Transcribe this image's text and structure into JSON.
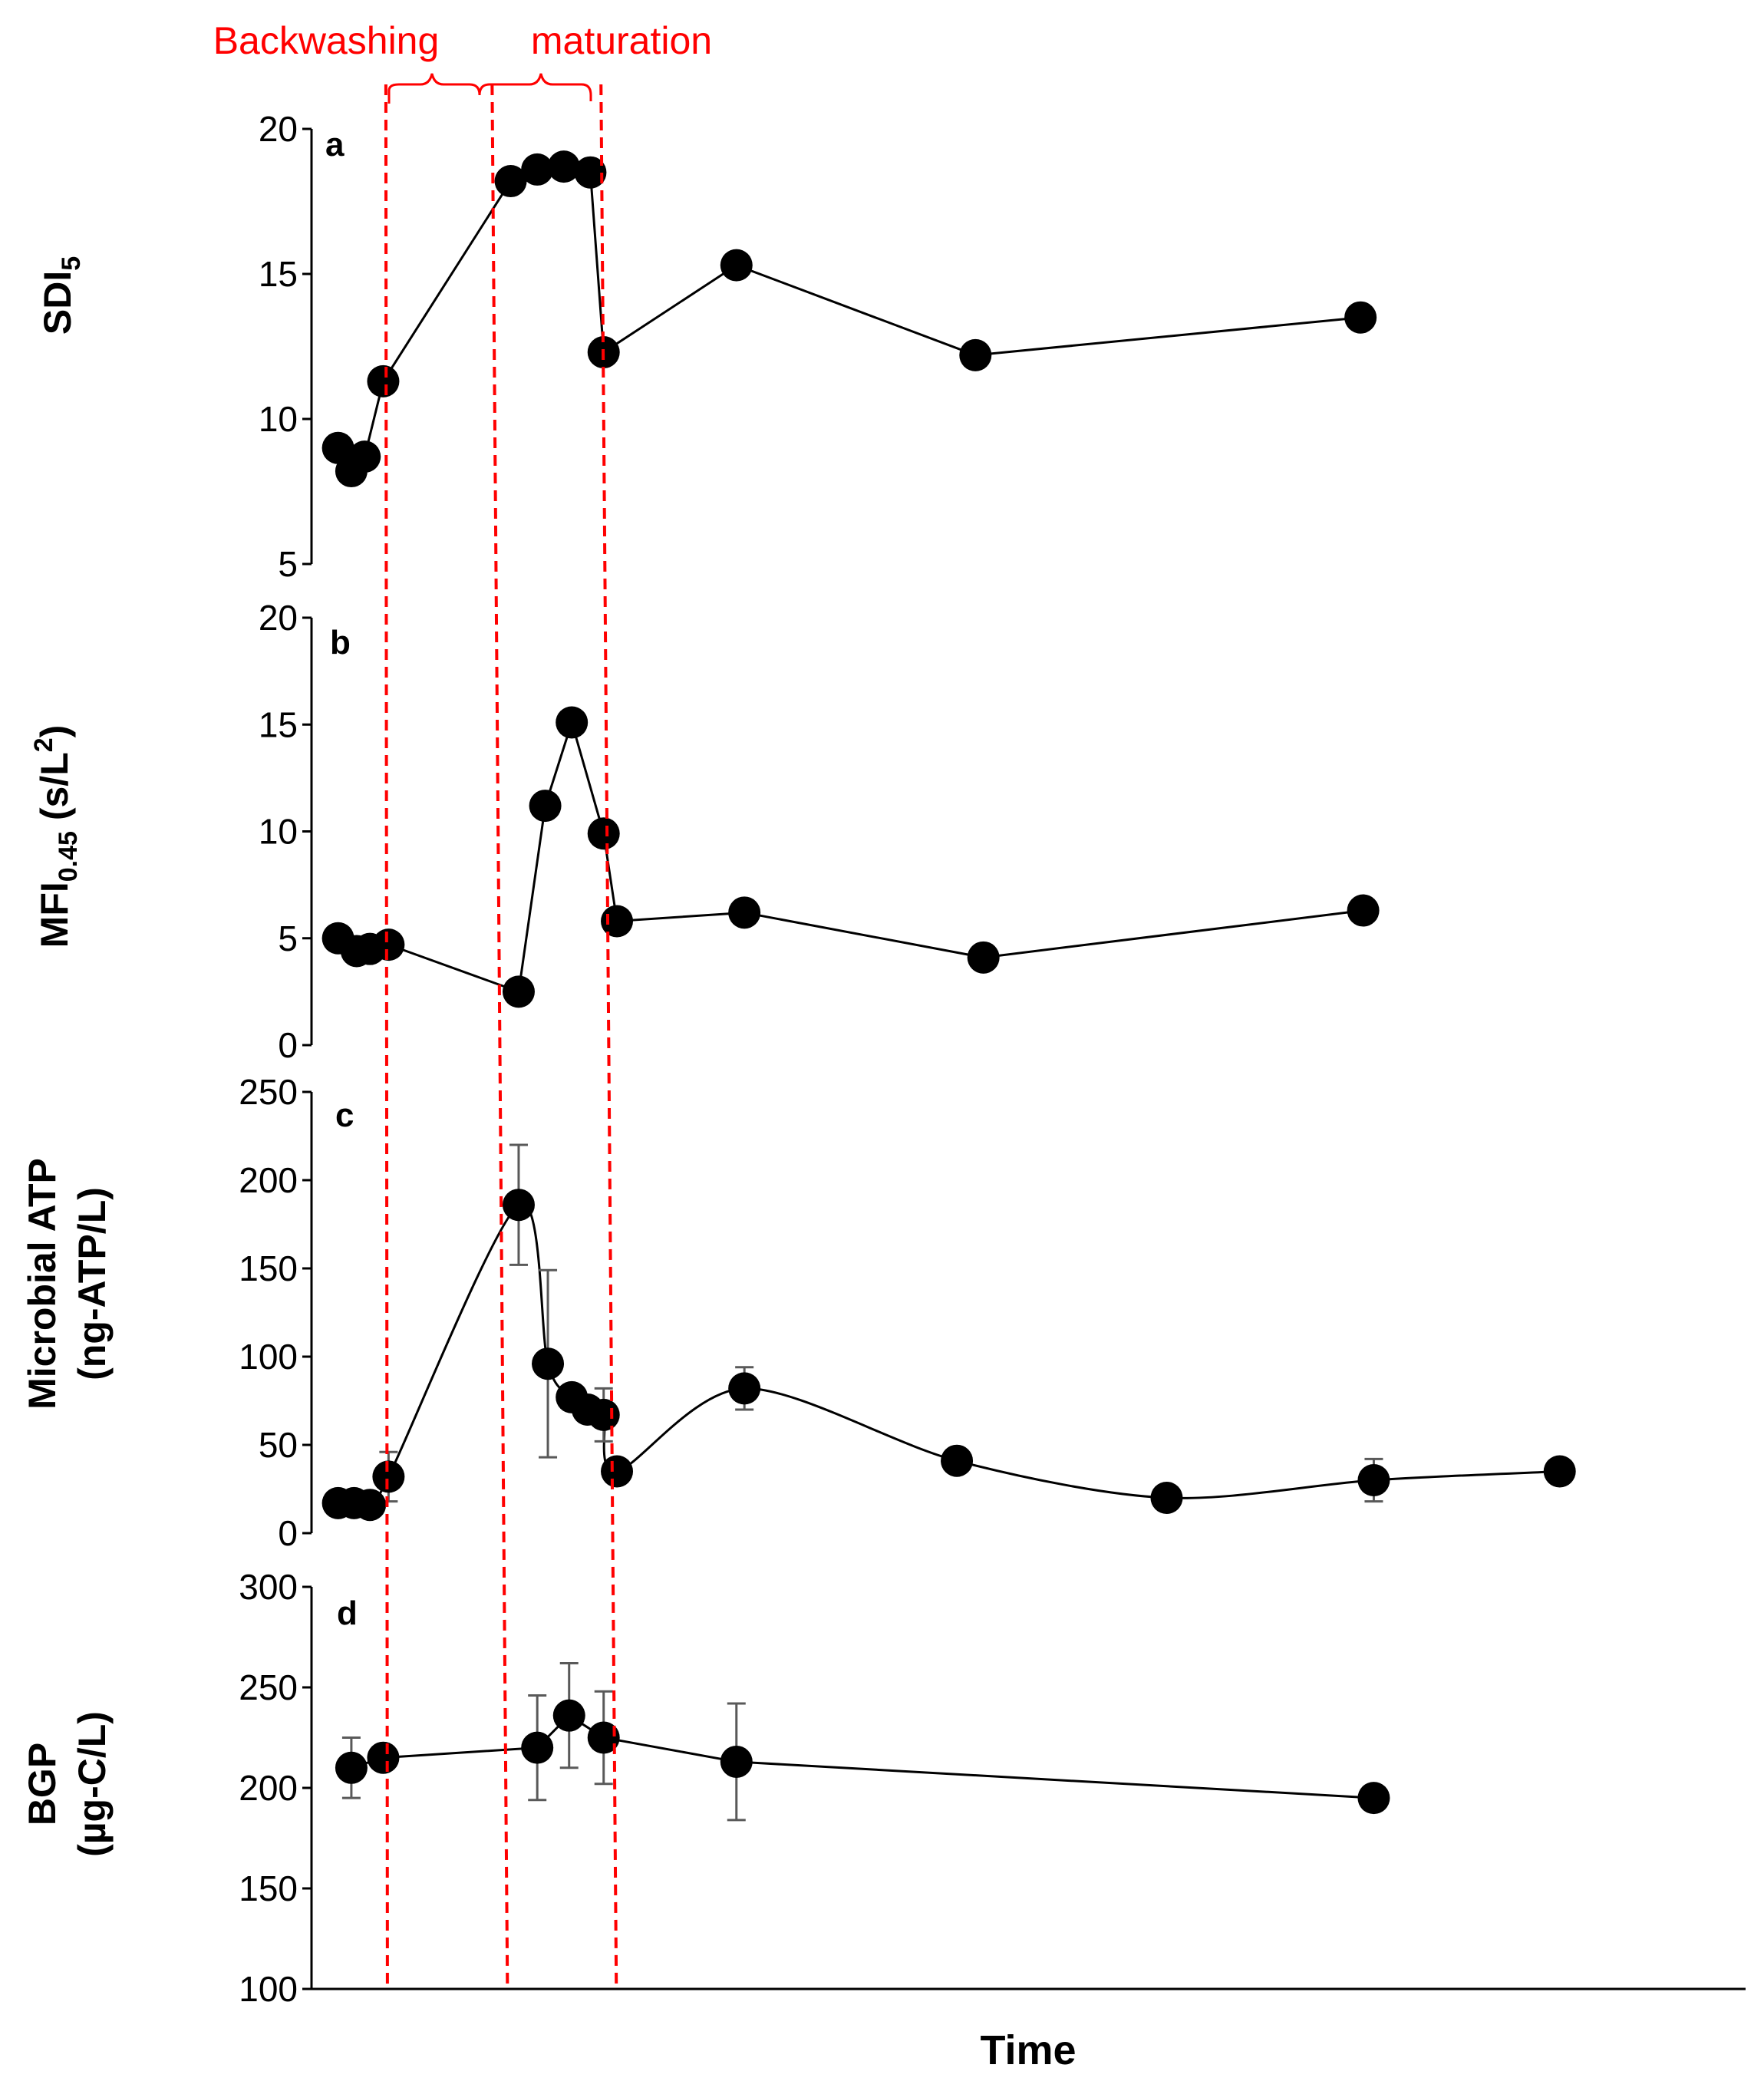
{
  "chart_data": [
    {
      "type": "line",
      "panel": "a",
      "ylabel": "SDI",
      "ylabel_sub": "5",
      "ylim": [
        5,
        20
      ],
      "yticks": [
        5,
        10,
        15,
        20
      ],
      "x": [
        1.0,
        1.5,
        2.0,
        2.7,
        7.5,
        8.5,
        9.5,
        10.5,
        11.0,
        16.0,
        25.0,
        39.5
      ],
      "y": [
        9.0,
        8.2,
        8.7,
        11.3,
        18.2,
        18.6,
        18.7,
        18.5,
        12.3,
        15.3,
        12.2,
        13.5
      ],
      "smooth": false
    },
    {
      "type": "line",
      "panel": "b",
      "ylabel": "MFI",
      "ylabel_sub": "0.45",
      "ylabel_rest": " (s/L",
      "ylabel_sup": "2",
      "ylabel_end": ")",
      "ylim": [
        0,
        20
      ],
      "yticks": [
        0,
        5,
        10,
        15,
        20
      ],
      "x": [
        1.0,
        1.7,
        2.2,
        2.9,
        7.8,
        8.8,
        9.8,
        11.0,
        11.5,
        16.3,
        25.3,
        39.6
      ],
      "y": [
        5.0,
        4.4,
        4.5,
        4.7,
        2.5,
        11.2,
        15.1,
        9.9,
        5.8,
        6.2,
        4.1,
        6.3
      ],
      "smooth": false
    },
    {
      "type": "line",
      "panel": "c",
      "ylabel_line1": "Microbial ATP",
      "ylabel_line2": "(ng-ATP/L)",
      "ylim": [
        0,
        250
      ],
      "yticks": [
        0,
        50,
        100,
        150,
        200,
        250
      ],
      "x": [
        1.0,
        1.6,
        2.2,
        2.9,
        7.8,
        8.9,
        9.8,
        10.4,
        11.0,
        11.5,
        16.3,
        24.3,
        32.2,
        40.0,
        47.0
      ],
      "y": [
        17,
        17,
        16,
        32,
        186,
        96,
        77,
        70,
        67,
        35,
        82,
        41,
        20,
        30,
        35
      ],
      "error": [
        0,
        0,
        0,
        14,
        34,
        53,
        0,
        0,
        15,
        0,
        12,
        0,
        0,
        12,
        0
      ],
      "smooth": true
    },
    {
      "type": "line",
      "panel": "d",
      "ylabel_line1": "BGP",
      "ylabel_line2": "(µg-C/L)",
      "ylim": [
        100,
        300
      ],
      "yticks": [
        100,
        150,
        200,
        250,
        300
      ],
      "x": [
        1.5,
        2.7,
        8.5,
        9.7,
        11.0,
        16.0,
        40.0
      ],
      "y": [
        210,
        215,
        220,
        236,
        225,
        213,
        195
      ],
      "error": [
        15,
        0,
        26,
        26,
        23,
        29,
        0
      ],
      "smooth": false
    }
  ],
  "axes": {
    "xlabel": "Time",
    "x_range": [
      0,
      54
    ]
  },
  "annotations": {
    "backwashing_label": "Backwashing",
    "maturation_label": "maturation",
    "phase_line_x": [
      2.8,
      6.8,
      10.9
    ],
    "color": "#ff0000"
  },
  "colors": {
    "marker": "#000000",
    "line": "#000000",
    "error_bar": "#595959",
    "axis": "#000000"
  }
}
